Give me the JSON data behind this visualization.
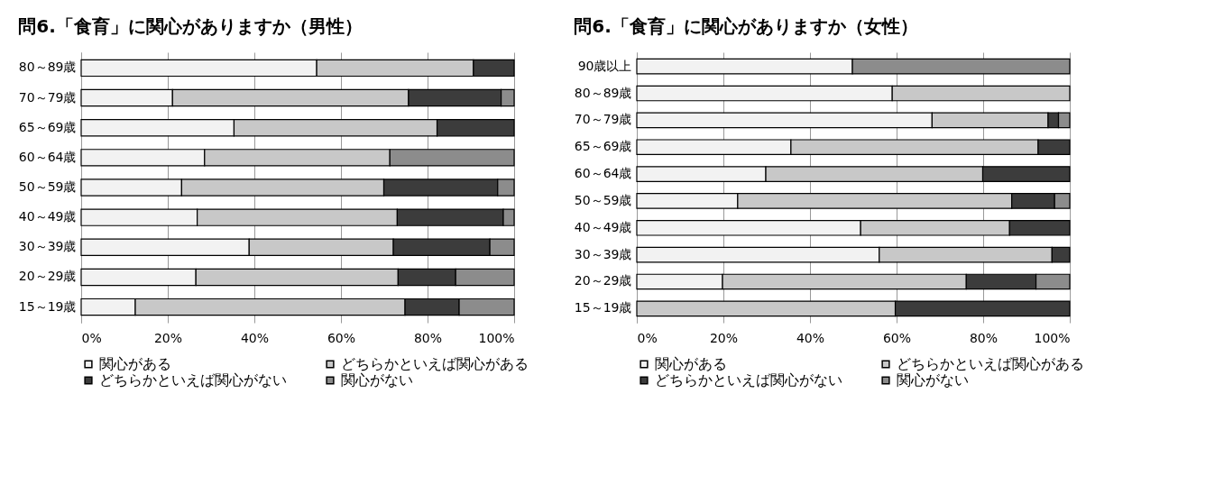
{
  "chart_data": [
    {
      "type": "bar",
      "orientation": "horizontal",
      "stacked": true,
      "title": "問6.「食育」に関心がありますか（男性）",
      "categories": [
        "80～89歳",
        "70～79歳",
        "65～69歳",
        "60～64歳",
        "50～59歳",
        "40～49歳",
        "30～39歳",
        "20～29歳",
        "15～19歳"
      ],
      "series": [
        {
          "name": "関心がある",
          "color": "#f2f2f2",
          "values": [
            54.4,
            21.1,
            35.3,
            28.5,
            23.2,
            26.8,
            38.8,
            26.5,
            12.5
          ]
        },
        {
          "name": "どちらかといえば関心がある",
          "color": "#c8c8c8",
          "values": [
            36.2,
            54.5,
            46.9,
            42.8,
            46.7,
            46.2,
            33.3,
            46.7,
            62.3
          ]
        },
        {
          "name": "どちらかといえば関心がない",
          "color": "#3c3c3c",
          "values": [
            9.4,
            21.4,
            17.8,
            0,
            26.3,
            24.5,
            22.3,
            13.3,
            12.5
          ]
        },
        {
          "name": "関心がない",
          "color": "#8c8c8c",
          "values": [
            0,
            3.0,
            0,
            28.7,
            3.8,
            2.5,
            5.6,
            13.5,
            12.7
          ]
        }
      ],
      "xlim": [
        0,
        100
      ],
      "xticks": [
        {
          "value": 0,
          "label": "0%"
        },
        {
          "value": 20,
          "label": "20%"
        },
        {
          "value": 40,
          "label": "40%"
        },
        {
          "value": 60,
          "label": "60%"
        },
        {
          "value": 80,
          "label": "80%"
        },
        {
          "value": 100,
          "label": "100%"
        }
      ],
      "grid": "x",
      "legend": "bottom"
    },
    {
      "type": "bar",
      "orientation": "horizontal",
      "stacked": true,
      "title": "問6.「食育」に関心がありますか（女性）",
      "categories": [
        "90歳以上",
        "80～89歳",
        "70～79歳",
        "65～69歳",
        "60～64歳",
        "50～59歳",
        "40～49歳",
        "30～39歳",
        "20～29歳",
        "15～19歳"
      ],
      "series": [
        {
          "name": "関心がある",
          "color": "#f2f2f2",
          "values": [
            49.8,
            59.0,
            68.2,
            35.6,
            29.8,
            23.3,
            51.7,
            56.0,
            19.8,
            0
          ]
        },
        {
          "name": "どちらかといえば関心がある",
          "color": "#c8c8c8",
          "values": [
            0,
            41.0,
            26.8,
            57.1,
            50.1,
            63.3,
            34.4,
            39.9,
            56.3,
            59.7
          ]
        },
        {
          "name": "どちらかといえば関心がない",
          "color": "#3c3c3c",
          "values": [
            0,
            0,
            2.4,
            7.3,
            20.1,
            9.9,
            13.9,
            4.1,
            16.1,
            40.3
          ]
        },
        {
          "name": "関心がない",
          "color": "#8c8c8c",
          "values": [
            50.2,
            0,
            2.6,
            0,
            0,
            3.5,
            0,
            0,
            7.8,
            0
          ]
        }
      ],
      "xlim": [
        0,
        100
      ],
      "xticks": [
        {
          "value": 0,
          "label": "0%"
        },
        {
          "value": 20,
          "label": "20%"
        },
        {
          "value": 40,
          "label": "40%"
        },
        {
          "value": 60,
          "label": "60%"
        },
        {
          "value": 80,
          "label": "80%"
        },
        {
          "value": 100,
          "label": "100%"
        }
      ],
      "grid": "x",
      "legend": "bottom"
    }
  ]
}
